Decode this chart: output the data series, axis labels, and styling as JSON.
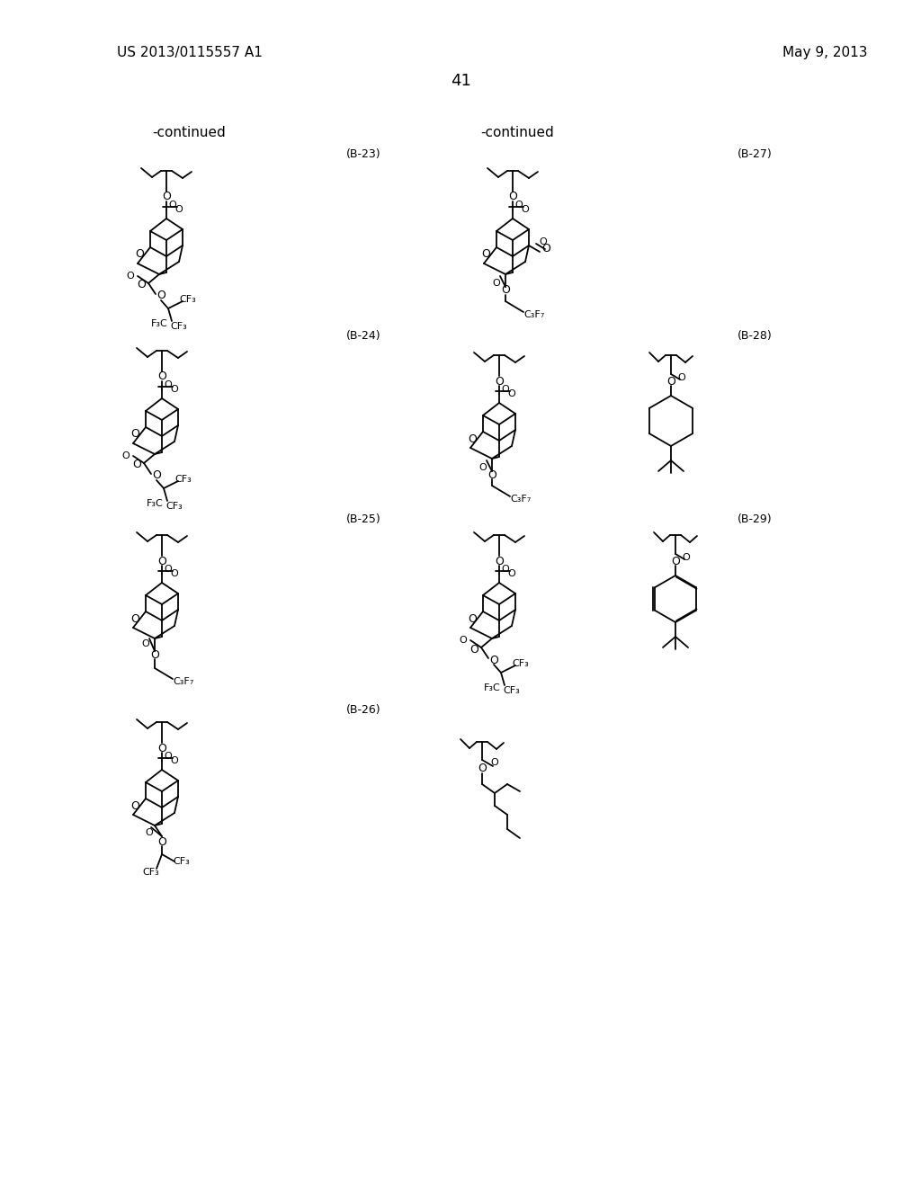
{
  "page_header_left": "US 2013/0115557 A1",
  "page_header_right": "May 9, 2013",
  "page_number": "41",
  "background_color": "#ffffff",
  "text_color": "#000000",
  "continued_left": "-continued",
  "continued_right": "-continued",
  "labels": [
    "(B-23)",
    "(B-24)",
    "(B-25)",
    "(B-26)",
    "(B-27)",
    "(B-28)",
    "(B-29)"
  ],
  "figsize": [
    10.24,
    13.2
  ],
  "dpi": 100
}
